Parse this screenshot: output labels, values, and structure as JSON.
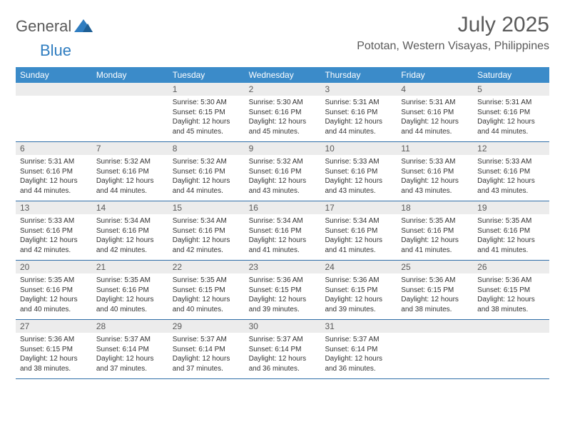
{
  "brand": {
    "name_a": "General",
    "name_b": "Blue"
  },
  "title": "July 2025",
  "location": "Pototan, Western Visayas, Philippines",
  "colors": {
    "header_bg": "#3b8bc9",
    "row_separator": "#2f6ea8",
    "daynum_bg": "#ececec",
    "text_muted": "#5a5a5a",
    "text": "#333333",
    "brand_blue": "#2f7dc0",
    "page_bg": "#ffffff"
  },
  "typography": {
    "title_size": 30,
    "location_size": 16,
    "dow_size": 12,
    "daynum_size": 12,
    "body_size": 10
  },
  "days_of_week": [
    "Sunday",
    "Monday",
    "Tuesday",
    "Wednesday",
    "Thursday",
    "Friday",
    "Saturday"
  ],
  "weeks": [
    [
      null,
      null,
      {
        "n": "1",
        "sr": "Sunrise: 5:30 AM",
        "ss": "Sunset: 6:15 PM",
        "dl1": "Daylight: 12 hours",
        "dl2": "and 45 minutes."
      },
      {
        "n": "2",
        "sr": "Sunrise: 5:30 AM",
        "ss": "Sunset: 6:16 PM",
        "dl1": "Daylight: 12 hours",
        "dl2": "and 45 minutes."
      },
      {
        "n": "3",
        "sr": "Sunrise: 5:31 AM",
        "ss": "Sunset: 6:16 PM",
        "dl1": "Daylight: 12 hours",
        "dl2": "and 44 minutes."
      },
      {
        "n": "4",
        "sr": "Sunrise: 5:31 AM",
        "ss": "Sunset: 6:16 PM",
        "dl1": "Daylight: 12 hours",
        "dl2": "and 44 minutes."
      },
      {
        "n": "5",
        "sr": "Sunrise: 5:31 AM",
        "ss": "Sunset: 6:16 PM",
        "dl1": "Daylight: 12 hours",
        "dl2": "and 44 minutes."
      }
    ],
    [
      {
        "n": "6",
        "sr": "Sunrise: 5:31 AM",
        "ss": "Sunset: 6:16 PM",
        "dl1": "Daylight: 12 hours",
        "dl2": "and 44 minutes."
      },
      {
        "n": "7",
        "sr": "Sunrise: 5:32 AM",
        "ss": "Sunset: 6:16 PM",
        "dl1": "Daylight: 12 hours",
        "dl2": "and 44 minutes."
      },
      {
        "n": "8",
        "sr": "Sunrise: 5:32 AM",
        "ss": "Sunset: 6:16 PM",
        "dl1": "Daylight: 12 hours",
        "dl2": "and 44 minutes."
      },
      {
        "n": "9",
        "sr": "Sunrise: 5:32 AM",
        "ss": "Sunset: 6:16 PM",
        "dl1": "Daylight: 12 hours",
        "dl2": "and 43 minutes."
      },
      {
        "n": "10",
        "sr": "Sunrise: 5:33 AM",
        "ss": "Sunset: 6:16 PM",
        "dl1": "Daylight: 12 hours",
        "dl2": "and 43 minutes."
      },
      {
        "n": "11",
        "sr": "Sunrise: 5:33 AM",
        "ss": "Sunset: 6:16 PM",
        "dl1": "Daylight: 12 hours",
        "dl2": "and 43 minutes."
      },
      {
        "n": "12",
        "sr": "Sunrise: 5:33 AM",
        "ss": "Sunset: 6:16 PM",
        "dl1": "Daylight: 12 hours",
        "dl2": "and 43 minutes."
      }
    ],
    [
      {
        "n": "13",
        "sr": "Sunrise: 5:33 AM",
        "ss": "Sunset: 6:16 PM",
        "dl1": "Daylight: 12 hours",
        "dl2": "and 42 minutes."
      },
      {
        "n": "14",
        "sr": "Sunrise: 5:34 AM",
        "ss": "Sunset: 6:16 PM",
        "dl1": "Daylight: 12 hours",
        "dl2": "and 42 minutes."
      },
      {
        "n": "15",
        "sr": "Sunrise: 5:34 AM",
        "ss": "Sunset: 6:16 PM",
        "dl1": "Daylight: 12 hours",
        "dl2": "and 42 minutes."
      },
      {
        "n": "16",
        "sr": "Sunrise: 5:34 AM",
        "ss": "Sunset: 6:16 PM",
        "dl1": "Daylight: 12 hours",
        "dl2": "and 41 minutes."
      },
      {
        "n": "17",
        "sr": "Sunrise: 5:34 AM",
        "ss": "Sunset: 6:16 PM",
        "dl1": "Daylight: 12 hours",
        "dl2": "and 41 minutes."
      },
      {
        "n": "18",
        "sr": "Sunrise: 5:35 AM",
        "ss": "Sunset: 6:16 PM",
        "dl1": "Daylight: 12 hours",
        "dl2": "and 41 minutes."
      },
      {
        "n": "19",
        "sr": "Sunrise: 5:35 AM",
        "ss": "Sunset: 6:16 PM",
        "dl1": "Daylight: 12 hours",
        "dl2": "and 41 minutes."
      }
    ],
    [
      {
        "n": "20",
        "sr": "Sunrise: 5:35 AM",
        "ss": "Sunset: 6:16 PM",
        "dl1": "Daylight: 12 hours",
        "dl2": "and 40 minutes."
      },
      {
        "n": "21",
        "sr": "Sunrise: 5:35 AM",
        "ss": "Sunset: 6:16 PM",
        "dl1": "Daylight: 12 hours",
        "dl2": "and 40 minutes."
      },
      {
        "n": "22",
        "sr": "Sunrise: 5:35 AM",
        "ss": "Sunset: 6:15 PM",
        "dl1": "Daylight: 12 hours",
        "dl2": "and 40 minutes."
      },
      {
        "n": "23",
        "sr": "Sunrise: 5:36 AM",
        "ss": "Sunset: 6:15 PM",
        "dl1": "Daylight: 12 hours",
        "dl2": "and 39 minutes."
      },
      {
        "n": "24",
        "sr": "Sunrise: 5:36 AM",
        "ss": "Sunset: 6:15 PM",
        "dl1": "Daylight: 12 hours",
        "dl2": "and 39 minutes."
      },
      {
        "n": "25",
        "sr": "Sunrise: 5:36 AM",
        "ss": "Sunset: 6:15 PM",
        "dl1": "Daylight: 12 hours",
        "dl2": "and 38 minutes."
      },
      {
        "n": "26",
        "sr": "Sunrise: 5:36 AM",
        "ss": "Sunset: 6:15 PM",
        "dl1": "Daylight: 12 hours",
        "dl2": "and 38 minutes."
      }
    ],
    [
      {
        "n": "27",
        "sr": "Sunrise: 5:36 AM",
        "ss": "Sunset: 6:15 PM",
        "dl1": "Daylight: 12 hours",
        "dl2": "and 38 minutes."
      },
      {
        "n": "28",
        "sr": "Sunrise: 5:37 AM",
        "ss": "Sunset: 6:14 PM",
        "dl1": "Daylight: 12 hours",
        "dl2": "and 37 minutes."
      },
      {
        "n": "29",
        "sr": "Sunrise: 5:37 AM",
        "ss": "Sunset: 6:14 PM",
        "dl1": "Daylight: 12 hours",
        "dl2": "and 37 minutes."
      },
      {
        "n": "30",
        "sr": "Sunrise: 5:37 AM",
        "ss": "Sunset: 6:14 PM",
        "dl1": "Daylight: 12 hours",
        "dl2": "and 36 minutes."
      },
      {
        "n": "31",
        "sr": "Sunrise: 5:37 AM",
        "ss": "Sunset: 6:14 PM",
        "dl1": "Daylight: 12 hours",
        "dl2": "and 36 minutes."
      },
      null,
      null
    ]
  ]
}
